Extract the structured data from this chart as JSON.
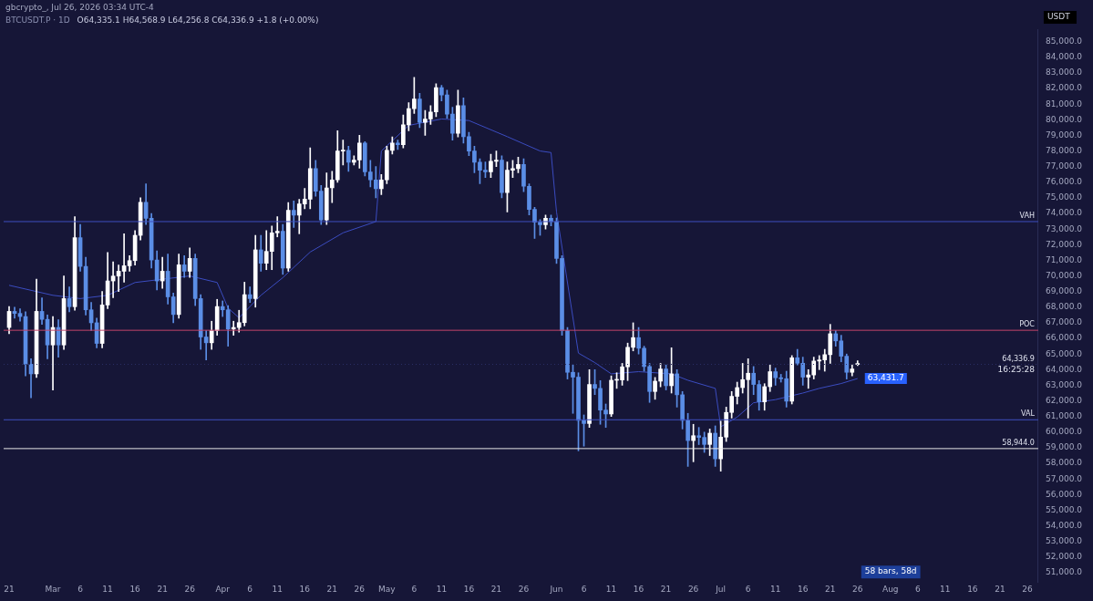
{
  "chart_data": {
    "type": "candlestick",
    "title": "BTCUSDT.P · 1D",
    "subtitle": "O64,335.1 H64,568.9 L64,256.8 C64,336.9 +1.8 (+0.00%)",
    "ylabel": "USDT",
    "annotations": [
      "gbcrypto_, Jul 26, 2026 03:34 UTC-4",
      "16:25:28",
      "58 bars, 58d",
      {
        "text": "63,431.7",
        "x": "2026-07-26",
        "y": 63431.7
      }
    ],
    "x": [
      "2026-02-21",
      "2026-02-22",
      "2026-02-23",
      "2026-02-24",
      "2026-02-25",
      "2026-02-26",
      "2026-02-27",
      "2026-02-28",
      "2026-03-01",
      "2026-03-02",
      "2026-03-03",
      "2026-03-04",
      "2026-03-05",
      "2026-03-06",
      "2026-03-07",
      "2026-03-08",
      "2026-03-09",
      "2026-03-10",
      "2026-03-11",
      "2026-03-12",
      "2026-03-13",
      "2026-03-14",
      "2026-03-15",
      "2026-03-16",
      "2026-03-17",
      "2026-03-18",
      "2026-03-19",
      "2026-03-20",
      "2026-03-21",
      "2026-03-22",
      "2026-03-23",
      "2026-03-24",
      "2026-03-25",
      "2026-03-26",
      "2026-03-27",
      "2026-03-28",
      "2026-03-29",
      "2026-03-30",
      "2026-03-31",
      "2026-04-01",
      "2026-04-02",
      "2026-04-03",
      "2026-04-04",
      "2026-04-05",
      "2026-04-06",
      "2026-04-07",
      "2026-04-08",
      "2026-04-09",
      "2026-04-10",
      "2026-04-11",
      "2026-04-12",
      "2026-04-13",
      "2026-04-14",
      "2026-04-15",
      "2026-04-16",
      "2026-04-17",
      "2026-04-18",
      "2026-04-19",
      "2026-04-20",
      "2026-04-21",
      "2026-04-22",
      "2026-04-23",
      "2026-04-24",
      "2026-04-25",
      "2026-04-26",
      "2026-04-27",
      "2026-04-28",
      "2026-04-29",
      "2026-04-30",
      "2026-05-01",
      "2026-05-02",
      "2026-05-03",
      "2026-05-04",
      "2026-05-05",
      "2026-05-06",
      "2026-05-07",
      "2026-05-08",
      "2026-05-09",
      "2026-05-10",
      "2026-05-11",
      "2026-05-12",
      "2026-05-13",
      "2026-05-14",
      "2026-05-15",
      "2026-05-16",
      "2026-05-17",
      "2026-05-18",
      "2026-05-19",
      "2026-05-20",
      "2026-05-21",
      "2026-05-22",
      "2026-05-23",
      "2026-05-24",
      "2026-05-25",
      "2026-05-26",
      "2026-05-27",
      "2026-05-28",
      "2026-05-29",
      "2026-05-30",
      "2026-05-31",
      "2026-06-01",
      "2026-06-02",
      "2026-06-03",
      "2026-06-04",
      "2026-06-05",
      "2026-06-06",
      "2026-06-07",
      "2026-06-08",
      "2026-06-09",
      "2026-06-10",
      "2026-06-11",
      "2026-06-12",
      "2026-06-13",
      "2026-06-14",
      "2026-06-15",
      "2026-06-16",
      "2026-06-17",
      "2026-06-18",
      "2026-06-19",
      "2026-06-20",
      "2026-06-21",
      "2026-06-22",
      "2026-06-23",
      "2026-06-24",
      "2026-06-25",
      "2026-06-26",
      "2026-06-27",
      "2026-06-28",
      "2026-06-29",
      "2026-06-30",
      "2026-07-01",
      "2026-07-02",
      "2026-07-03",
      "2026-07-04",
      "2026-07-05",
      "2026-07-06",
      "2026-07-07",
      "2026-07-08",
      "2026-07-09",
      "2026-07-10",
      "2026-07-11",
      "2026-07-12",
      "2026-07-13",
      "2026-07-14",
      "2026-07-15",
      "2026-07-16",
      "2026-07-17",
      "2026-07-18",
      "2026-07-19",
      "2026-07-20",
      "2026-07-21",
      "2026-07-22",
      "2026-07-23",
      "2026-07-24",
      "2026-07-25",
      "2026-07-26"
    ],
    "series": [
      {
        "ohlc": [
          [
            66700,
            68040,
            66300,
            67730
          ],
          [
            67730,
            68000,
            67300,
            67600
          ],
          [
            67600,
            67900,
            67100,
            67400
          ],
          [
            67400,
            67700,
            63600,
            64350
          ],
          [
            64350,
            64700,
            62200,
            63730
          ],
          [
            63730,
            69800,
            63500,
            67730
          ],
          [
            67730,
            68600,
            66900,
            67220
          ],
          [
            67220,
            67500,
            64700,
            65580
          ],
          [
            65580,
            67400,
            62700,
            66700
          ],
          [
            66700,
            67200,
            64800,
            65580
          ],
          [
            65580,
            70000,
            65300,
            68550
          ],
          [
            68550,
            69300,
            67700,
            68030
          ],
          [
            68030,
            73800,
            67800,
            72450
          ],
          [
            72450,
            73300,
            70300,
            70610
          ],
          [
            70610,
            71200,
            67500,
            67830
          ],
          [
            67830,
            68300,
            66500,
            67000
          ],
          [
            67000,
            67300,
            65400,
            65680
          ],
          [
            65680,
            69000,
            65400,
            68140
          ],
          [
            68140,
            71500,
            67900,
            69680
          ],
          [
            69680,
            70900,
            68600,
            69990
          ],
          [
            69990,
            70700,
            69000,
            70300
          ],
          [
            70300,
            72700,
            69600,
            70650
          ],
          [
            70650,
            71300,
            70300,
            70980
          ],
          [
            70980,
            72900,
            70700,
            72600
          ],
          [
            72600,
            75000,
            72300,
            74710
          ],
          [
            74710,
            75900,
            73300,
            73690
          ],
          [
            73690,
            74000,
            70500,
            71020
          ],
          [
            71020,
            71600,
            69100,
            69680
          ],
          [
            69680,
            71200,
            69200,
            70300
          ],
          [
            70300,
            71400,
            68200,
            68660
          ],
          [
            68660,
            68900,
            67000,
            67530
          ],
          [
            67530,
            71400,
            67300,
            70710
          ],
          [
            70710,
            71300,
            69900,
            70300
          ],
          [
            70300,
            71800,
            69900,
            71120
          ],
          [
            71120,
            71400,
            68100,
            68550
          ],
          [
            68550,
            68800,
            65300,
            66090
          ],
          [
            66090,
            66500,
            64620,
            65720
          ],
          [
            65720,
            67100,
            65300,
            66500
          ],
          [
            66500,
            68500,
            66200,
            68040
          ],
          [
            68040,
            68400,
            67400,
            67830
          ],
          [
            67830,
            68100,
            65500,
            66600
          ],
          [
            66600,
            67100,
            66200,
            66700
          ],
          [
            66700,
            67800,
            66400,
            67010
          ],
          [
            67010,
            69600,
            66800,
            68800
          ],
          [
            68800,
            69300,
            68300,
            68550
          ],
          [
            68550,
            72600,
            68000,
            71670
          ],
          [
            71670,
            72600,
            70300,
            70810
          ],
          [
            70810,
            72900,
            70400,
            71570
          ],
          [
            71570,
            73200,
            70400,
            72760
          ],
          [
            72760,
            73800,
            72500,
            72860
          ],
          [
            72860,
            73300,
            70100,
            70500
          ],
          [
            70500,
            74700,
            70300,
            74200
          ],
          [
            74200,
            74800,
            73100,
            73890
          ],
          [
            73890,
            74900,
            72700,
            74610
          ],
          [
            74610,
            75600,
            74300,
            74920
          ],
          [
            74920,
            78200,
            74300,
            76870
          ],
          [
            76870,
            77400,
            75100,
            75430
          ],
          [
            75430,
            75800,
            73300,
            73580
          ],
          [
            73580,
            76600,
            73300,
            75640
          ],
          [
            75640,
            76700,
            74700,
            76150
          ],
          [
            76150,
            79300,
            76000,
            78000
          ],
          [
            78000,
            78700,
            77100,
            78040
          ],
          [
            78040,
            78300,
            76700,
            77280
          ],
          [
            77280,
            77700,
            77100,
            77420
          ],
          [
            77420,
            79000,
            76900,
            78510
          ],
          [
            78510,
            78600,
            76400,
            76660
          ],
          [
            76660,
            77400,
            75700,
            76150
          ],
          [
            76150,
            77000,
            75000,
            75580
          ],
          [
            75580,
            76500,
            75200,
            76150
          ],
          [
            76150,
            78300,
            75900,
            78040
          ],
          [
            78040,
            78900,
            77800,
            78510
          ],
          [
            78510,
            78700,
            78100,
            78410
          ],
          [
            78410,
            80300,
            78200,
            79680
          ],
          [
            79680,
            81100,
            79300,
            80710
          ],
          [
            80710,
            82720,
            80400,
            81330
          ],
          [
            81330,
            81700,
            79500,
            79840
          ],
          [
            79840,
            80600,
            79000,
            80050
          ],
          [
            80050,
            80900,
            79700,
            80500
          ],
          [
            80500,
            82310,
            80200,
            82060
          ],
          [
            82060,
            82200,
            81200,
            81590
          ],
          [
            81590,
            81900,
            80100,
            80360
          ],
          [
            80360,
            80800,
            78700,
            79130
          ],
          [
            79130,
            81900,
            78900,
            80910
          ],
          [
            80910,
            81400,
            78500,
            78920
          ],
          [
            78920,
            79200,
            77700,
            78000
          ],
          [
            78000,
            78300,
            76600,
            77280
          ],
          [
            77280,
            77500,
            75900,
            76770
          ],
          [
            76770,
            77300,
            76300,
            76660
          ],
          [
            76660,
            77800,
            76300,
            77340
          ],
          [
            77340,
            78000,
            77000,
            77420
          ],
          [
            77420,
            77700,
            75000,
            75330
          ],
          [
            75330,
            77300,
            74100,
            76770
          ],
          [
            76770,
            77400,
            76300,
            76870
          ],
          [
            76870,
            77600,
            76600,
            77140
          ],
          [
            77140,
            77500,
            75400,
            75740
          ],
          [
            75740,
            75900,
            73900,
            74260
          ],
          [
            74260,
            74400,
            72400,
            73440
          ],
          [
            73440,
            73600,
            72600,
            73280
          ],
          [
            73280,
            73900,
            73000,
            73690
          ],
          [
            73690,
            73900,
            73200,
            73480
          ],
          [
            73480,
            73700,
            70800,
            71120
          ],
          [
            71120,
            71300,
            66200,
            66500
          ],
          [
            66500,
            66700,
            63400,
            63830
          ],
          [
            63830,
            64300,
            61200,
            63520
          ],
          [
            63520,
            63800,
            58800,
            60750
          ],
          [
            60750,
            61100,
            59100,
            60550
          ],
          [
            60550,
            64000,
            60300,
            63050
          ],
          [
            63050,
            64000,
            62400,
            62800
          ],
          [
            62800,
            63300,
            60500,
            61410
          ],
          [
            61410,
            61800,
            60300,
            61160
          ],
          [
            61160,
            63600,
            61000,
            63320
          ],
          [
            63320,
            63800,
            62800,
            63340
          ],
          [
            63340,
            64400,
            63000,
            64180
          ],
          [
            64180,
            65700,
            63300,
            65430
          ],
          [
            65430,
            67000,
            65200,
            66050
          ],
          [
            66050,
            66700,
            65000,
            65370
          ],
          [
            65370,
            65500,
            63900,
            64200
          ],
          [
            64200,
            64400,
            61900,
            62600
          ],
          [
            62600,
            63500,
            62100,
            63260
          ],
          [
            63260,
            64400,
            62900,
            64040
          ],
          [
            64040,
            64300,
            62700,
            62970
          ],
          [
            62970,
            65400,
            62500,
            63730
          ],
          [
            63730,
            64000,
            61600,
            62390
          ],
          [
            62390,
            62600,
            60200,
            60750
          ],
          [
            60750,
            61200,
            57800,
            59460
          ],
          [
            59460,
            60500,
            58100,
            59770
          ],
          [
            59770,
            60300,
            59200,
            59660
          ],
          [
            59660,
            60000,
            58700,
            59210
          ],
          [
            59210,
            60200,
            58500,
            59930
          ],
          [
            59930,
            60400,
            57800,
            58290
          ],
          [
            58290,
            60700,
            57500,
            59680
          ],
          [
            59680,
            61600,
            59400,
            61260
          ],
          [
            61260,
            62600,
            60900,
            62290
          ],
          [
            62290,
            63200,
            61800,
            62850
          ],
          [
            62850,
            64400,
            62500,
            63360
          ],
          [
            63360,
            64700,
            60900,
            63770
          ],
          [
            63770,
            64200,
            62400,
            63050
          ],
          [
            63050,
            63300,
            61400,
            61940
          ],
          [
            61940,
            63100,
            61400,
            62910
          ],
          [
            62910,
            64300,
            62600,
            63870
          ],
          [
            63870,
            64100,
            63000,
            63480
          ],
          [
            63480,
            63700,
            63200,
            63420
          ],
          [
            63420,
            63900,
            61600,
            61980
          ],
          [
            61980,
            64900,
            61800,
            64760
          ],
          [
            64760,
            65300,
            64300,
            64410
          ],
          [
            64410,
            64800,
            63000,
            63520
          ],
          [
            63520,
            64000,
            62800,
            63660
          ],
          [
            63660,
            64800,
            63400,
            64550
          ],
          [
            64550,
            64900,
            64000,
            64620
          ],
          [
            64620,
            65300,
            63900,
            64960
          ],
          [
            64960,
            66900,
            64400,
            66300
          ],
          [
            66300,
            66500,
            65500,
            65840
          ],
          [
            65840,
            66200,
            64500,
            64860
          ],
          [
            64860,
            65000,
            63400,
            63830
          ],
          [
            63830,
            64300,
            63600,
            64040
          ],
          [
            64335.1,
            64568.9,
            64256.8,
            64336.9
          ]
        ],
        "colors": [
          "#ffffff",
          "#5b8ee6",
          "#5b8ee6",
          "#5b8ee6",
          "#5b8ee6",
          "#ffffff",
          "#5b8ee6",
          "#5b8ee6",
          "#ffffff",
          "#5b8ee6",
          "#ffffff",
          "#5b8ee6",
          "#ffffff",
          "#5b8ee6",
          "#5b8ee6",
          "#5b8ee6",
          "#5b8ee6",
          "#ffffff",
          "#ffffff",
          "#ffffff",
          "#ffffff",
          "#ffffff",
          "#ffffff",
          "#ffffff",
          "#ffffff",
          "#5b8ee6",
          "#5b8ee6",
          "#5b8ee6",
          "#ffffff",
          "#5b8ee6",
          "#5b8ee6",
          "#ffffff",
          "#5b8ee6",
          "#ffffff",
          "#5b8ee6",
          "#5b8ee6",
          "#5b8ee6",
          "#ffffff",
          "#ffffff",
          "#5b8ee6",
          "#5b8ee6",
          "#ffffff",
          "#ffffff",
          "#ffffff",
          "#5b8ee6",
          "#ffffff",
          "#5b8ee6",
          "#ffffff",
          "#ffffff",
          "#ffffff",
          "#5b8ee6",
          "#ffffff",
          "#5b8ee6",
          "#ffffff",
          "#ffffff",
          "#ffffff",
          "#5b8ee6",
          "#5b8ee6",
          "#ffffff",
          "#ffffff",
          "#ffffff",
          "#ffffff",
          "#5b8ee6",
          "#ffffff",
          "#ffffff",
          "#5b8ee6",
          "#5b8ee6",
          "#5b8ee6",
          "#ffffff",
          "#ffffff",
          "#ffffff",
          "#5b8ee6",
          "#ffffff",
          "#ffffff",
          "#ffffff",
          "#5b8ee6",
          "#ffffff",
          "#ffffff",
          "#ffffff",
          "#5b8ee6",
          "#5b8ee6",
          "#5b8ee6",
          "#ffffff",
          "#5b8ee6",
          "#5b8ee6",
          "#5b8ee6",
          "#5b8ee6",
          "#5b8ee6",
          "#ffffff",
          "#ffffff",
          "#5b8ee6",
          "#ffffff",
          "#ffffff",
          "#ffffff",
          "#5b8ee6",
          "#5b8ee6",
          "#5b8ee6",
          "#5b8ee6",
          "#ffffff",
          "#5b8ee6",
          "#5b8ee6",
          "#5b8ee6",
          "#5b8ee6",
          "#5b8ee6",
          "#5b8ee6",
          "#5b8ee6",
          "#ffffff",
          "#5b8ee6",
          "#5b8ee6",
          "#5b8ee6",
          "#ffffff",
          "#ffffff",
          "#ffffff",
          "#ffffff",
          "#ffffff",
          "#5b8ee6",
          "#5b8ee6",
          "#5b8ee6",
          "#ffffff",
          "#ffffff",
          "#5b8ee6",
          "#ffffff",
          "#5b8ee6",
          "#5b8ee6",
          "#5b8ee6",
          "#ffffff",
          "#5b8ee6",
          "#5b8ee6",
          "#ffffff",
          "#5b8ee6",
          "#ffffff",
          "#ffffff",
          "#ffffff",
          "#ffffff",
          "#ffffff",
          "#ffffff",
          "#5b8ee6",
          "#5b8ee6",
          "#ffffff",
          "#ffffff",
          "#5b8ee6",
          "#5b8ee6",
          "#5b8ee6",
          "#ffffff",
          "#5b8ee6",
          "#5b8ee6",
          "#ffffff",
          "#ffffff",
          "#ffffff",
          "#ffffff",
          "#ffffff",
          "#5b8ee6",
          "#5b8ee6",
          "#5b8ee6",
          "#ffffff",
          "#ffffff"
        ]
      },
      {
        "type": "line",
        "color": "#3b4cc0",
        "x": [
          "2026-02-21",
          "2026-03-01",
          "2026-03-06",
          "2026-03-11",
          "2026-03-16",
          "2026-03-21",
          "2026-03-26",
          "2026-03-31",
          "2026-04-02",
          "2026-04-04",
          "2026-04-08",
          "2026-04-12",
          "2026-04-17",
          "2026-04-23",
          "2026-04-29",
          "2026-04-30",
          "2026-05-05",
          "2026-05-11",
          "2026-05-16",
          "2026-05-23",
          "2026-05-29",
          "2026-05-31",
          "2026-06-01",
          "2026-06-05",
          "2026-06-08",
          "2026-06-11",
          "2026-06-16",
          "2026-06-22",
          "2026-06-25",
          "2026-06-30",
          "2026-07-01",
          "2026-07-04",
          "2026-07-07",
          "2026-07-11",
          "2026-07-16",
          "2026-07-19",
          "2026-07-23",
          "2026-07-26"
        ],
        "values": [
          69400,
          68760,
          68550,
          68760,
          69580,
          69790,
          70000,
          69580,
          67940,
          67320,
          68760,
          69890,
          71530,
          72760,
          73480,
          78000,
          79640,
          80050,
          79950,
          78920,
          78000,
          77900,
          74100,
          65060,
          64450,
          63730,
          63870,
          63730,
          63320,
          62800,
          60340,
          60960,
          61880,
          62080,
          62500,
          62800,
          63110,
          63431.7
        ]
      }
    ],
    "ref_lines": [
      {
        "axis": "y",
        "value": 73480,
        "label": "VAH",
        "color": "#3f4fbf"
      },
      {
        "axis": "y",
        "value": 66520,
        "label": "POC",
        "color": "#c2456a"
      },
      {
        "axis": "y",
        "value": 60790,
        "label": "VAL",
        "color": "#3f4fbf"
      },
      {
        "axis": "y",
        "value": 58944,
        "label": "58,944.0",
        "color": "#e6e6e6"
      },
      {
        "axis": "y",
        "value": 64336.9,
        "label": "64,336.9",
        "color": "#2c2f66",
        "line_style": "dotted"
      }
    ],
    "xlim": [
      "2026-02-20",
      "2026-08-28"
    ],
    "xticks": [
      {
        "value": "2026-02-21",
        "label": "21"
      },
      {
        "value": "2026-03-01",
        "label": "Mar"
      },
      {
        "value": "2026-03-06",
        "label": "6"
      },
      {
        "value": "2026-03-11",
        "label": "11"
      },
      {
        "value": "2026-03-16",
        "label": "16"
      },
      {
        "value": "2026-03-21",
        "label": "21"
      },
      {
        "value": "2026-03-26",
        "label": "26"
      },
      {
        "value": "2026-04-01",
        "label": "Apr"
      },
      {
        "value": "2026-04-06",
        "label": "6"
      },
      {
        "value": "2026-04-11",
        "label": "11"
      },
      {
        "value": "2026-04-16",
        "label": "16"
      },
      {
        "value": "2026-04-21",
        "label": "21"
      },
      {
        "value": "2026-04-26",
        "label": "26"
      },
      {
        "value": "2026-05-01",
        "label": "May"
      },
      {
        "value": "2026-05-06",
        "label": "6"
      },
      {
        "value": "2026-05-11",
        "label": "11"
      },
      {
        "value": "2026-05-16",
        "label": "16"
      },
      {
        "value": "2026-05-21",
        "label": "21"
      },
      {
        "value": "2026-05-26",
        "label": "26"
      },
      {
        "value": "2026-06-01",
        "label": "Jun"
      },
      {
        "value": "2026-06-06",
        "label": "6"
      },
      {
        "value": "2026-06-11",
        "label": "11"
      },
      {
        "value": "2026-06-16",
        "label": "16"
      },
      {
        "value": "2026-06-21",
        "label": "21"
      },
      {
        "value": "2026-06-26",
        "label": "26"
      },
      {
        "value": "2026-07-01",
        "label": "Jul"
      },
      {
        "value": "2026-07-06",
        "label": "6"
      },
      {
        "value": "2026-07-11",
        "label": "11"
      },
      {
        "value": "2026-07-16",
        "label": "16"
      },
      {
        "value": "2026-07-21",
        "label": "21"
      },
      {
        "value": "2026-07-26",
        "label": "26"
      },
      {
        "value": "2026-08-01",
        "label": "Aug"
      },
      {
        "value": "2026-08-06",
        "label": "6"
      },
      {
        "value": "2026-08-11",
        "label": "11"
      },
      {
        "value": "2026-08-16",
        "label": "16"
      },
      {
        "value": "2026-08-21",
        "label": "21"
      },
      {
        "value": "2026-08-26",
        "label": "26"
      }
    ],
    "ylim": [
      50400,
      85800
    ],
    "yticks": [
      {
        "value": 51000,
        "label": "51,000.0"
      },
      {
        "value": 52000,
        "label": "52,000.0"
      },
      {
        "value": 53000,
        "label": "53,000.0"
      },
      {
        "value": 54000,
        "label": "54,000.0"
      },
      {
        "value": 55000,
        "label": "55,000.0"
      },
      {
        "value": 56000,
        "label": "56,000.0"
      },
      {
        "value": 57000,
        "label": "57,000.0"
      },
      {
        "value": 58000,
        "label": "58,000.0"
      },
      {
        "value": 59000,
        "label": "59,000.0"
      },
      {
        "value": 60000,
        "label": "60,000.0"
      },
      {
        "value": 61000,
        "label": "61,000.0"
      },
      {
        "value": 62000,
        "label": "62,000.0"
      },
      {
        "value": 63000,
        "label": "63,000.0"
      },
      {
        "value": 64000,
        "label": "64,000.0"
      },
      {
        "value": 65000,
        "label": "65,000.0"
      },
      {
        "value": 66000,
        "label": "66,000.0"
      },
      {
        "value": 67000,
        "label": "67,000.0"
      },
      {
        "value": 68000,
        "label": "68,000.0"
      },
      {
        "value": 69000,
        "label": "69,000.0"
      },
      {
        "value": 70000,
        "label": "70,000.0"
      },
      {
        "value": 71000,
        "label": "71,000.0"
      },
      {
        "value": 72000,
        "label": "72,000.0"
      },
      {
        "value": 73000,
        "label": "73,000.0"
      },
      {
        "value": 74000,
        "label": "74,000.0"
      },
      {
        "value": 75000,
        "label": "75,000.0"
      },
      {
        "value": 76000,
        "label": "76,000.0"
      },
      {
        "value": 77000,
        "label": "77,000.0"
      },
      {
        "value": 78000,
        "label": "78,000.0"
      },
      {
        "value": 79000,
        "label": "79,000.0"
      },
      {
        "value": 80000,
        "label": "80,000.0"
      },
      {
        "value": 81000,
        "label": "81,000.0"
      },
      {
        "value": 82000,
        "label": "82,000.0"
      },
      {
        "value": 83000,
        "label": "83,000.0"
      },
      {
        "value": 84000,
        "label": "84,000.0"
      },
      {
        "value": 85000,
        "label": "85,000.0"
      }
    ],
    "grid": false,
    "legend": false
  }
}
